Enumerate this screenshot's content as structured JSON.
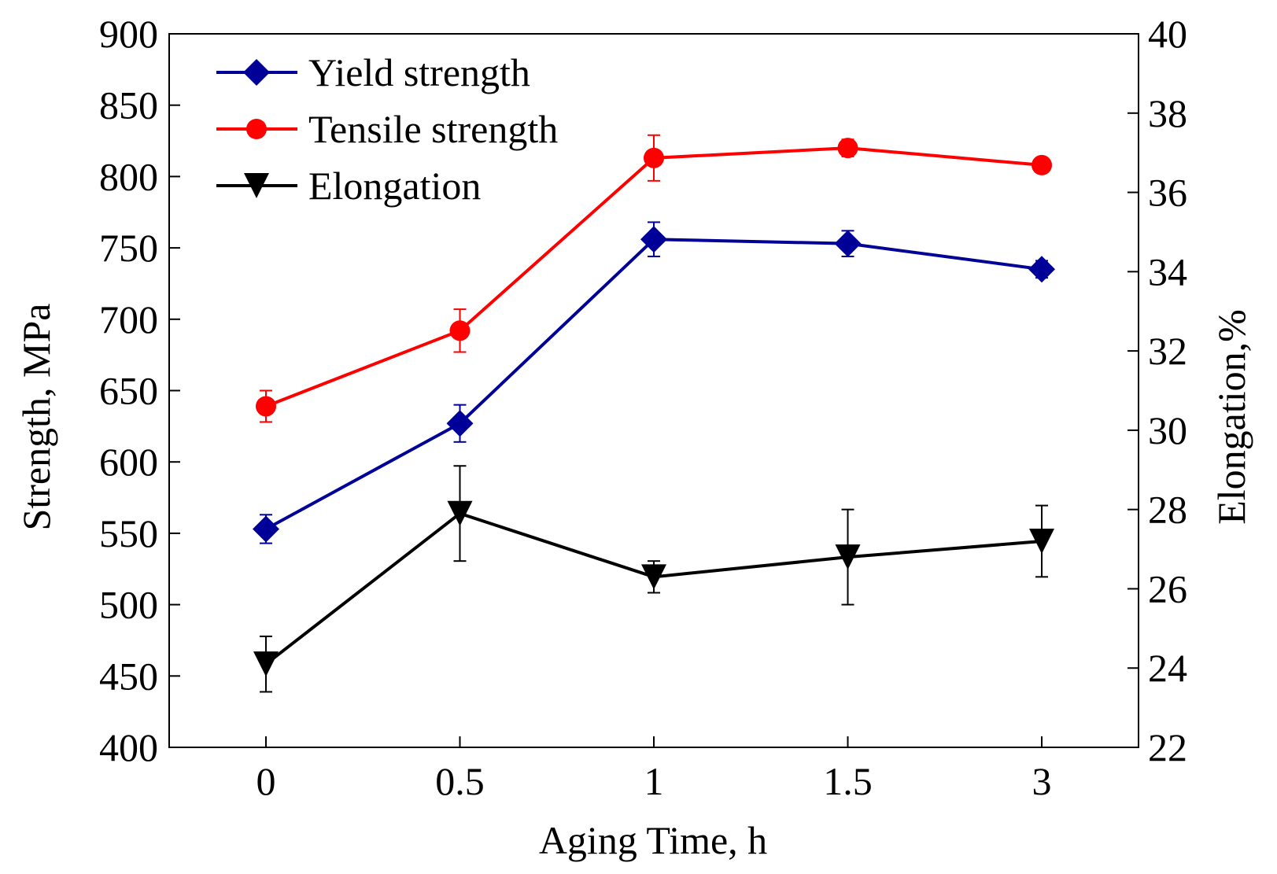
{
  "chart_data": {
    "type": "line",
    "title": "",
    "xlabel": "Aging Time, h",
    "ylabel_left": "Strength, MPa",
    "ylabel_right": "Elongation,%",
    "categories": [
      "0",
      "0.5",
      "1",
      "1.5",
      "3"
    ],
    "ylim_left": [
      400,
      900
    ],
    "ylim_right": [
      22,
      40
    ],
    "yticks_left": [
      "400",
      "450",
      "500",
      "550",
      "600",
      "650",
      "700",
      "750",
      "800",
      "850",
      "900"
    ],
    "yticks_right": [
      "22",
      "24",
      "26",
      "28",
      "30",
      "32",
      "34",
      "36",
      "38",
      "40"
    ],
    "grid": false,
    "legend_position": "top-left",
    "series": [
      {
        "name": "Yield strength",
        "axis": "left",
        "color": "#000099",
        "marker": "diamond",
        "values": [
          553,
          627,
          756,
          753,
          735
        ],
        "errors": [
          10,
          13,
          12,
          9,
          6
        ]
      },
      {
        "name": "Tensile strength",
        "axis": "left",
        "color": "#ff0000",
        "marker": "circle",
        "values": [
          639,
          692,
          813,
          820,
          808
        ],
        "errors": [
          11,
          15,
          16,
          6,
          5
        ]
      },
      {
        "name": "Elongation",
        "axis": "right",
        "color": "#000000",
        "marker": "triangle-down",
        "values": [
          24.1,
          27.9,
          26.3,
          26.8,
          27.2
        ],
        "errors": [
          0.7,
          1.2,
          0.4,
          1.2,
          0.9
        ]
      }
    ]
  }
}
